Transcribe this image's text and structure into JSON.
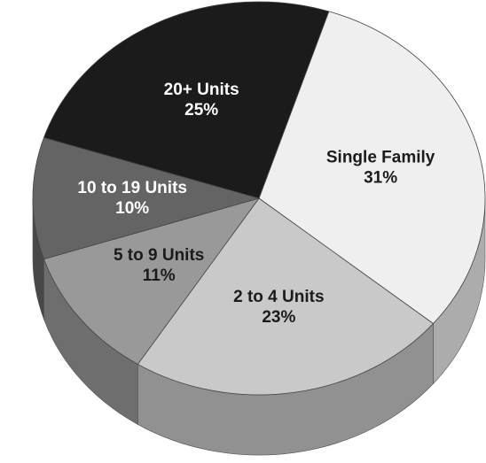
{
  "chart_data": {
    "type": "pie",
    "categories": [
      "Single Family",
      "2 to 4 Units",
      "5 to 9 Units",
      "10 to 19 Units",
      "20+ Units"
    ],
    "values": [
      31,
      23,
      11,
      10,
      25
    ],
    "value_labels": [
      "31%",
      "23%",
      "11%",
      "10%",
      "25%"
    ],
    "colors": [
      "#efefef",
      "#c9c9c9",
      "#999999",
      "#646464",
      "#1b1b1b"
    ]
  }
}
